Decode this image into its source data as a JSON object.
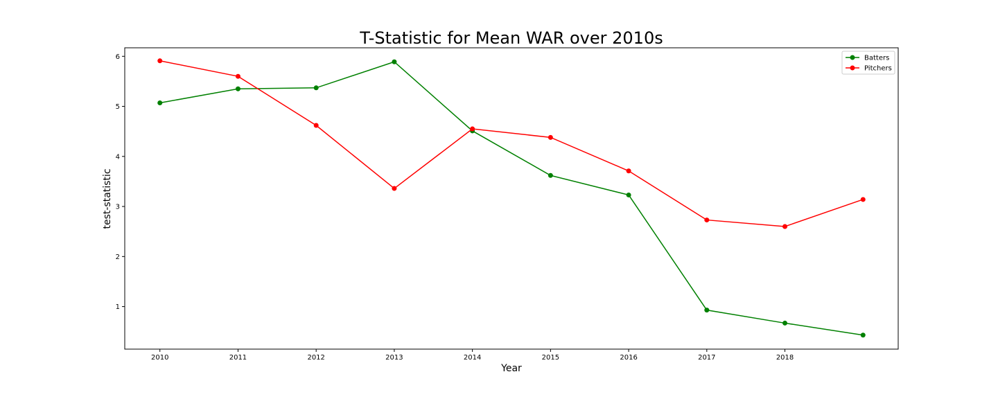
{
  "chart_data": {
    "type": "line",
    "title": "T-Statistic for Mean WAR over 2010s",
    "xlabel": "Year",
    "ylabel": "test-statistic",
    "x": [
      2010,
      2011,
      2012,
      2013,
      2014,
      2015,
      2016,
      2017,
      2018,
      2019
    ],
    "xticks": [
      "2010",
      "2011",
      "2012",
      "2013",
      "2014",
      "2015",
      "2016",
      "2017",
      "2018"
    ],
    "yticks": [
      "1",
      "2",
      "3",
      "4",
      "5",
      "6"
    ],
    "xlim": [
      2009.55,
      2019.45
    ],
    "ylim": [
      0.15,
      6.17
    ],
    "grid": false,
    "legend_position": "top-right",
    "series": [
      {
        "name": "Batters",
        "color": "#008000",
        "values": [
          5.07,
          5.35,
          5.37,
          5.89,
          4.51,
          3.62,
          3.23,
          0.93,
          0.67,
          0.43
        ]
      },
      {
        "name": "Pitchers",
        "color": "#ff0000",
        "values": [
          5.91,
          5.6,
          4.62,
          3.36,
          4.55,
          4.38,
          3.71,
          2.73,
          2.6,
          3.14
        ]
      }
    ]
  }
}
